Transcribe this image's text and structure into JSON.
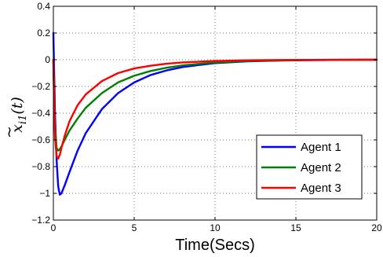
{
  "chart_data": {
    "type": "line",
    "title": "",
    "xlabel": "Time(Secs)",
    "ylabel_base": "x",
    "ylabel_tilde": "~",
    "ylabel_sub": "i1",
    "ylabel_arg": "(t)",
    "xlim": [
      0,
      20
    ],
    "ylim": [
      -1.2,
      0.4
    ],
    "xticks": [
      0,
      5,
      10,
      15,
      20
    ],
    "yticks": [
      0.4,
      0.2,
      0,
      -0.2,
      -0.4,
      -0.6,
      -0.8,
      -1,
      -1.2
    ],
    "xtick_labels": [
      "0",
      "5",
      "10",
      "15",
      "20"
    ],
    "ytick_labels": [
      "0.4",
      "0.2",
      "0",
      "−0.2",
      "−0.4",
      "−0.6",
      "−0.8",
      "−1",
      "−1.2"
    ],
    "grid": true,
    "legend_position": "bottom-right",
    "series": [
      {
        "name": "Agent 1",
        "color": "#0000ff",
        "x": [
          0,
          0.05,
          0.1,
          0.2,
          0.3,
          0.4,
          0.5,
          0.7,
          1,
          1.5,
          2,
          3,
          4,
          5,
          6,
          7,
          8,
          10,
          12,
          14,
          16,
          18,
          20
        ],
        "y": [
          0.2,
          -0.1,
          -0.4,
          -0.75,
          -0.95,
          -1.01,
          -1.0,
          -0.94,
          -0.84,
          -0.68,
          -0.55,
          -0.37,
          -0.25,
          -0.17,
          -0.115,
          -0.08,
          -0.055,
          -0.025,
          -0.012,
          -0.006,
          -0.003,
          -0.001,
          0
        ]
      },
      {
        "name": "Agent 2",
        "color": "#008000",
        "x": [
          0,
          0.05,
          0.1,
          0.2,
          0.3,
          0.4,
          0.5,
          0.7,
          1,
          1.5,
          2,
          3,
          4,
          5,
          6,
          7,
          8,
          10,
          12,
          14,
          16,
          18,
          20
        ],
        "y": [
          0,
          -0.3,
          -0.5,
          -0.66,
          -0.68,
          -0.67,
          -0.65,
          -0.6,
          -0.53,
          -0.44,
          -0.36,
          -0.25,
          -0.17,
          -0.12,
          -0.085,
          -0.06,
          -0.042,
          -0.02,
          -0.01,
          -0.005,
          -0.002,
          -0.001,
          0
        ]
      },
      {
        "name": "Agent 3",
        "color": "#ff0000",
        "x": [
          0,
          0.05,
          0.1,
          0.2,
          0.3,
          0.4,
          0.5,
          0.7,
          1,
          1.5,
          2,
          3,
          4,
          5,
          6,
          7,
          8,
          10,
          12,
          14,
          16,
          18,
          20
        ],
        "y": [
          0,
          -0.35,
          -0.58,
          -0.72,
          -0.74,
          -0.71,
          -0.66,
          -0.57,
          -0.46,
          -0.34,
          -0.26,
          -0.16,
          -0.1,
          -0.065,
          -0.045,
          -0.03,
          -0.02,
          -0.009,
          -0.004,
          -0.002,
          -0.001,
          0,
          0
        ]
      }
    ]
  }
}
